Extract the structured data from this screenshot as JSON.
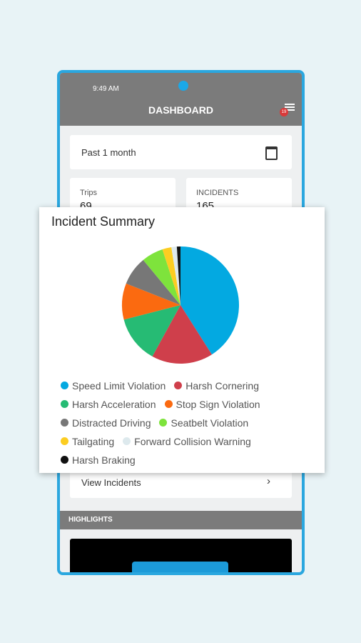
{
  "status_bar": {
    "time": "9:49 AM"
  },
  "header": {
    "title": "DASHBOARD",
    "badge": "19"
  },
  "filter": {
    "label": "Past 1 month"
  },
  "stats": [
    {
      "label": "Trips",
      "value": 69
    },
    {
      "label": "INCIDENTS",
      "value": 165
    }
  ],
  "chart_data": {
    "type": "pie",
    "title": "Incident Summary",
    "categories": [
      "Speed Limit Violation",
      "Harsh Cornering",
      "Harsh Acceleration",
      "Stop Sign Violation",
      "Distracted Driving",
      "Seatbelt Violation",
      "Tailgating",
      "Forward Collision Warning",
      "Harsh Braking"
    ],
    "values": [
      41,
      17,
      13,
      10,
      8,
      6,
      2.5,
      1.5,
      1
    ],
    "colors": [
      "#03a9e1",
      "#cf3f4b",
      "#26bb74",
      "#fb6a10",
      "#777777",
      "#7ee33c",
      "#fccd21",
      "#dde9ed",
      "#111111"
    ]
  },
  "link": {
    "label": "View Incidents"
  },
  "section": {
    "title": "HIGHLIGHTS"
  }
}
